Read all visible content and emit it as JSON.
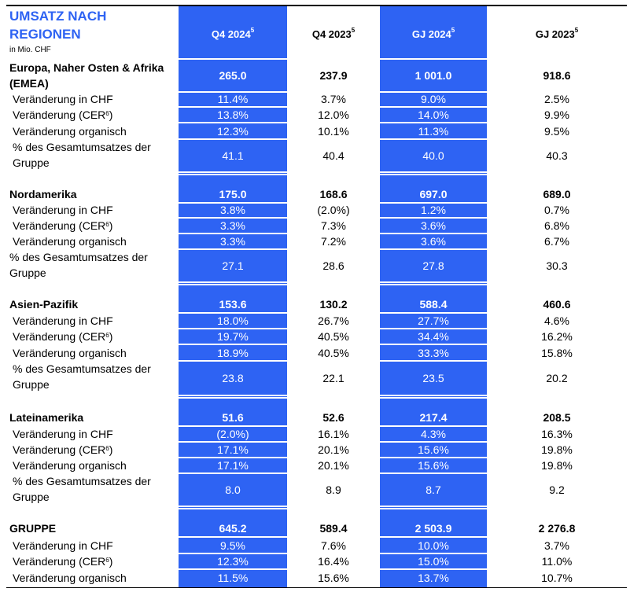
{
  "title": "UMSATZ NACH REGIONEN",
  "unit": "in Mio. CHF",
  "columns": [
    {
      "label": "Q4 2024",
      "note": "5"
    },
    {
      "label": "Q4 2023",
      "note": "5"
    },
    {
      "label": "GJ 2024",
      "note": "5"
    },
    {
      "label": "GJ 2023",
      "note": "5"
    }
  ],
  "colors": {
    "accent": "#2e63f3"
  },
  "regions": [
    {
      "name": "Europa, Naher Osten & Afrika (EMEA)",
      "values": [
        "265.0",
        "237.9",
        "1 001.0",
        "918.6"
      ],
      "rows": [
        {
          "label": "Veränderung in CHF",
          "values": [
            "11.4%",
            "3.7%",
            "9.0%",
            "2.5%"
          ]
        },
        {
          "label": "Veränderung (CER",
          "sup": "6",
          "after": ")",
          "values": [
            "13.8%",
            "12.0%",
            "14.0%",
            "9.9%"
          ]
        },
        {
          "label": "Veränderung organisch",
          "values": [
            "12.3%",
            "10.1%",
            "11.3%",
            "9.5%"
          ]
        },
        {
          "label": "% des Gesamtumsatzes der Gruppe",
          "values": [
            "41.1",
            "40.4",
            "40.0",
            "40.3"
          ]
        }
      ]
    },
    {
      "name": "Nordamerika",
      "values": [
        "175.0",
        "168.6",
        "697.0",
        "689.0"
      ],
      "rows": [
        {
          "label": "Veränderung in CHF",
          "values": [
            "3.8%",
            "(2.0%)",
            "1.2%",
            "0.7%"
          ]
        },
        {
          "label": "Veränderung (CER",
          "sup": "6",
          "after": ")",
          "values": [
            "3.3%",
            "7.3%",
            "3.6%",
            "6.8%"
          ]
        },
        {
          "label": "Veränderung organisch",
          "values": [
            "3.3%",
            "7.2%",
            "3.6%",
            "6.7%"
          ]
        },
        {
          "label": "% des Gesamtumsatzes der Gruppe",
          "values": [
            "27.1",
            "28.6",
            "27.8",
            "30.3"
          ]
        }
      ]
    },
    {
      "name": "Asien-Pazifik",
      "values": [
        "153.6",
        "130.2",
        "588.4",
        "460.6"
      ],
      "rows": [
        {
          "label": "Veränderung in CHF",
          "values": [
            "18.0%",
            "26.7%",
            "27.7%",
            "4.6%"
          ]
        },
        {
          "label": "Veränderung (CER",
          "sup": "6",
          "after": ")",
          "values": [
            "19.7%",
            "40.5%",
            "34.4%",
            "16.2%"
          ]
        },
        {
          "label": "Veränderung organisch",
          "values": [
            "18.9%",
            "40.5%",
            "33.3%",
            "15.8%"
          ]
        },
        {
          "label": "% des Gesamtumsatzes der Gruppe",
          "values": [
            "23.8",
            "22.1",
            "23.5",
            "20.2"
          ]
        }
      ]
    },
    {
      "name": "Lateinamerika",
      "values": [
        "51.6",
        "52.6",
        "217.4",
        "208.5"
      ],
      "rows": [
        {
          "label": "Veränderung in CHF",
          "values": [
            "(2.0%)",
            "16.1%",
            "4.3%",
            "16.3%"
          ]
        },
        {
          "label": "Veränderung (CER",
          "sup": "6",
          "after": ")",
          "values": [
            "17.1%",
            "20.1%",
            "15.6%",
            "19.8%"
          ]
        },
        {
          "label": "Veränderung organisch",
          "values": [
            "17.1%",
            "20.1%",
            "15.6%",
            "19.8%"
          ]
        },
        {
          "label": "% des Gesamtumsatzes der Gruppe",
          "values": [
            "8.0",
            "8.9",
            "8.7",
            "9.2"
          ]
        }
      ]
    },
    {
      "name": "GRUPPE",
      "values": [
        "645.2",
        "589.4",
        "2 503.9",
        "2 276.8"
      ],
      "rows": [
        {
          "label": "Veränderung in CHF",
          "values": [
            "9.5%",
            "7.6%",
            "10.0%",
            "3.7%"
          ]
        },
        {
          "label": "Veränderung (CER",
          "sup": "6",
          "after": ")",
          "values": [
            "12.3%",
            "16.4%",
            "15.0%",
            "11.0%"
          ]
        },
        {
          "label": "Veränderung organisch",
          "values": [
            "11.5%",
            "15.6%",
            "13.7%",
            "10.7%"
          ]
        }
      ]
    }
  ]
}
